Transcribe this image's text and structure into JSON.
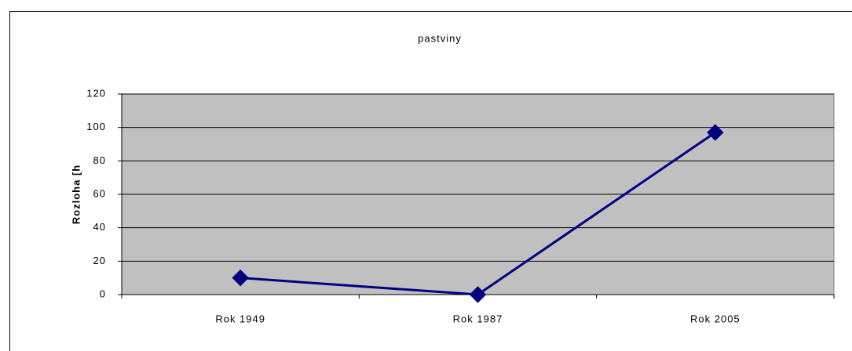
{
  "chart_data": {
    "type": "line",
    "title": "pastviny",
    "y_label": "Rozloha [h",
    "categories": [
      "Rok 1949",
      "Rok 1987",
      "Rok 2005"
    ],
    "series": [
      {
        "name": "pastviny",
        "color": "#000080",
        "values": [
          10,
          0,
          97
        ]
      }
    ],
    "ylim": [
      0,
      120
    ],
    "yticks": [
      0,
      20,
      40,
      60,
      80,
      100,
      120
    ],
    "grid": true,
    "plot_background": "#c0c0c0"
  }
}
